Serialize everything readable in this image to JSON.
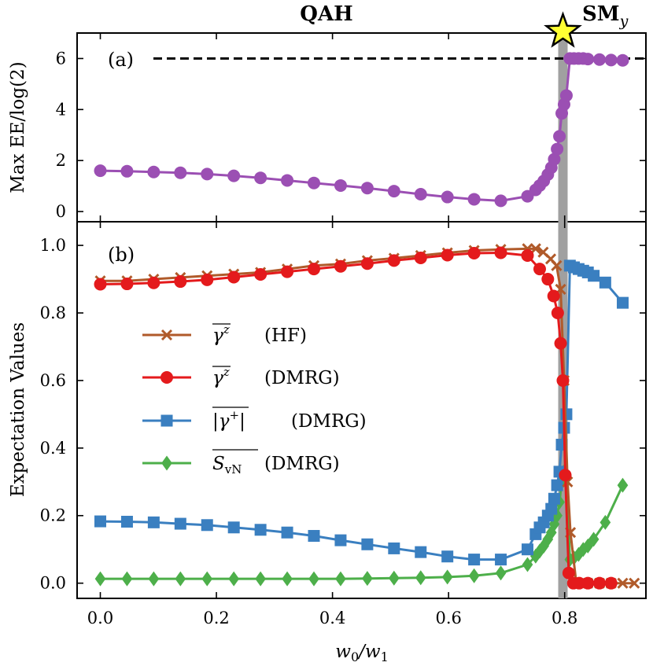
{
  "phase_labels": {
    "left": "QAH",
    "right_main": "SM",
    "right_sub": "y"
  },
  "colors": {
    "purple": "#9b4fb3",
    "hf": "#b05a2a",
    "dmrg_gz": "#e41a1c",
    "gplus": "#3a7fc0",
    "svn": "#4daf4a",
    "transition": "#a0a0a0",
    "star_fill": "#ffff33"
  },
  "chart_data": [
    {
      "type": "line",
      "panel_label": "(a)",
      "ylabel": "Max EE/log(2)",
      "xlim": [
        -0.04,
        0.94
      ],
      "ylim": [
        -0.4,
        7.0
      ],
      "yticks": [
        0,
        2,
        4,
        6
      ],
      "ytick_labels": [
        "0",
        "2",
        "4",
        "6"
      ],
      "reference_line": {
        "y": 6,
        "style": "dashed"
      },
      "transition_x": 0.797,
      "series": [
        {
          "name": "Max EE",
          "marker": "circle",
          "x": [
            0.0,
            0.046,
            0.092,
            0.138,
            0.184,
            0.23,
            0.276,
            0.322,
            0.368,
            0.414,
            0.46,
            0.506,
            0.552,
            0.598,
            0.644,
            0.69,
            0.736,
            0.75,
            0.757,
            0.764,
            0.771,
            0.777,
            0.782,
            0.787,
            0.791,
            0.795,
            0.799,
            0.803,
            0.809,
            0.816,
            0.824,
            0.832,
            0.84,
            0.86,
            0.88,
            0.9
          ],
          "y": [
            1.6,
            1.58,
            1.55,
            1.52,
            1.47,
            1.4,
            1.32,
            1.22,
            1.12,
            1.02,
            0.92,
            0.8,
            0.68,
            0.57,
            0.48,
            0.42,
            0.6,
            0.85,
            1.02,
            1.2,
            1.45,
            1.72,
            2.05,
            2.45,
            2.95,
            3.85,
            4.2,
            4.55,
            6.0,
            6.0,
            6.0,
            6.0,
            5.98,
            5.96,
            5.94,
            5.93
          ]
        }
      ]
    },
    {
      "type": "line",
      "panel_label": "(b)",
      "xlabel_main": "w",
      "xlabel_sub1": "0",
      "xlabel_sep": "/w",
      "xlabel_sub2": "1",
      "ylabel": "Expectation Values",
      "xlim": [
        -0.04,
        0.94
      ],
      "ylim": [
        -0.045,
        1.07
      ],
      "xticks": [
        0.0,
        0.2,
        0.4,
        0.6,
        0.8
      ],
      "xtick_labels": [
        "0.0",
        "0.2",
        "0.4",
        "0.6",
        "0.8"
      ],
      "yticks": [
        0.0,
        0.2,
        0.4,
        0.6,
        0.8,
        1.0
      ],
      "ytick_labels": [
        "0.0",
        "0.2",
        "0.4",
        "0.6",
        "0.8",
        "1.0"
      ],
      "transition_x": 0.797,
      "series": [
        {
          "name": "γ^z (HF)",
          "legend_symbol": "γ",
          "legend_sup": "z",
          "legend_method": "(HF)",
          "marker": "x",
          "x": [
            0.0,
            0.046,
            0.092,
            0.138,
            0.184,
            0.23,
            0.276,
            0.322,
            0.368,
            0.414,
            0.46,
            0.506,
            0.552,
            0.598,
            0.644,
            0.69,
            0.736,
            0.75,
            0.763,
            0.776,
            0.786,
            0.793,
            0.799,
            0.805,
            0.81,
            0.82,
            0.84,
            0.86,
            0.88,
            0.9,
            0.92
          ],
          "y": [
            0.895,
            0.895,
            0.9,
            0.905,
            0.91,
            0.915,
            0.92,
            0.93,
            0.94,
            0.945,
            0.955,
            0.962,
            0.97,
            0.978,
            0.985,
            0.988,
            0.99,
            0.99,
            0.98,
            0.96,
            0.94,
            0.87,
            0.6,
            0.3,
            0.15,
            0.0,
            0.0,
            0.0,
            0.0,
            0.0,
            0.0
          ]
        },
        {
          "name": "γ^z (DMRG)",
          "legend_symbol": "γ",
          "legend_sup": "z",
          "legend_method": "(DMRG)",
          "marker": "circle",
          "x": [
            0.0,
            0.046,
            0.092,
            0.138,
            0.184,
            0.23,
            0.276,
            0.322,
            0.368,
            0.414,
            0.46,
            0.506,
            0.552,
            0.598,
            0.644,
            0.69,
            0.736,
            0.757,
            0.771,
            0.781,
            0.788,
            0.793,
            0.797,
            0.801,
            0.807,
            0.815,
            0.825,
            0.84,
            0.86,
            0.88
          ],
          "y": [
            0.885,
            0.886,
            0.889,
            0.893,
            0.898,
            0.906,
            0.914,
            0.922,
            0.93,
            0.938,
            0.946,
            0.955,
            0.963,
            0.971,
            0.977,
            0.978,
            0.97,
            0.93,
            0.9,
            0.85,
            0.8,
            0.71,
            0.6,
            0.32,
            0.03,
            0.0,
            0.0,
            0.0,
            0.0,
            0.0
          ]
        },
        {
          "name": "|γ^+| (DMRG)",
          "legend_symbol": "|γ",
          "legend_sup": "+",
          "legend_close": "|",
          "legend_method": "(DMRG)",
          "marker": "square",
          "x": [
            0.0,
            0.046,
            0.092,
            0.138,
            0.184,
            0.23,
            0.276,
            0.322,
            0.368,
            0.414,
            0.46,
            0.506,
            0.552,
            0.598,
            0.644,
            0.69,
            0.736,
            0.75,
            0.757,
            0.764,
            0.771,
            0.777,
            0.782,
            0.787,
            0.791,
            0.795,
            0.799,
            0.803,
            0.809,
            0.816,
            0.824,
            0.832,
            0.84,
            0.85,
            0.87,
            0.9
          ],
          "y": [
            0.183,
            0.182,
            0.18,
            0.176,
            0.172,
            0.165,
            0.158,
            0.15,
            0.14,
            0.127,
            0.115,
            0.103,
            0.092,
            0.079,
            0.07,
            0.07,
            0.1,
            0.145,
            0.165,
            0.18,
            0.2,
            0.22,
            0.25,
            0.29,
            0.33,
            0.41,
            0.46,
            0.5,
            0.94,
            0.935,
            0.93,
            0.925,
            0.92,
            0.91,
            0.89,
            0.83
          ]
        },
        {
          "name": "S_vN (DMRG)",
          "legend_symbol": "S",
          "legend_subscript": "vN",
          "legend_method": "(DMRG)",
          "marker": "diamond",
          "x": [
            0.0,
            0.046,
            0.092,
            0.138,
            0.184,
            0.23,
            0.276,
            0.322,
            0.368,
            0.414,
            0.46,
            0.506,
            0.552,
            0.598,
            0.644,
            0.69,
            0.736,
            0.75,
            0.757,
            0.764,
            0.771,
            0.777,
            0.782,
            0.787,
            0.791,
            0.795,
            0.799,
            0.803,
            0.809,
            0.816,
            0.824,
            0.832,
            0.84,
            0.85,
            0.87,
            0.9
          ],
          "y": [
            0.013,
            0.013,
            0.013,
            0.013,
            0.013,
            0.013,
            0.013,
            0.013,
            0.013,
            0.013,
            0.014,
            0.015,
            0.016,
            0.018,
            0.022,
            0.03,
            0.055,
            0.08,
            0.095,
            0.11,
            0.13,
            0.15,
            0.175,
            0.2,
            0.24,
            0.3,
            0.33,
            0.32,
            0.07,
            0.075,
            0.085,
            0.1,
            0.11,
            0.13,
            0.18,
            0.29
          ]
        }
      ]
    }
  ]
}
